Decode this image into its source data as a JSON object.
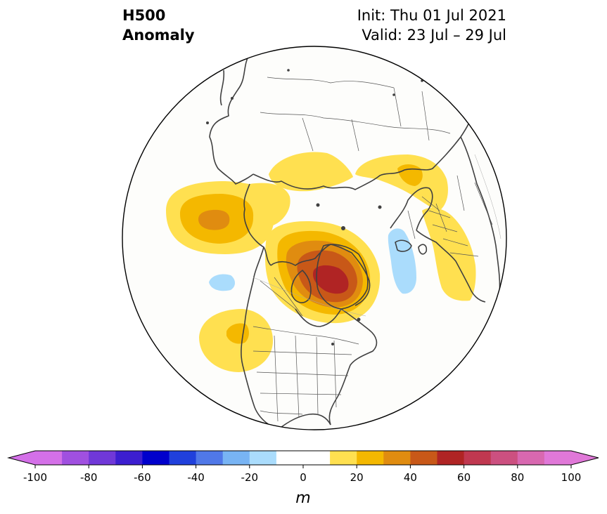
{
  "title": {
    "line1": "H500",
    "line2": "Anomaly",
    "init": "Init: Thu 01 Jul 2021",
    "valid": "Valid: 23 Jul – 29 Jul"
  },
  "colorbar": {
    "unit": "m",
    "ticks": [
      "-100",
      "-80",
      "-60",
      "-40",
      "-20",
      "0",
      "20",
      "40",
      "60",
      "80",
      "100"
    ],
    "levels": [
      -100,
      -90,
      -80,
      -70,
      -60,
      -50,
      -40,
      -30,
      -20,
      -10,
      10,
      20,
      30,
      40,
      50,
      60,
      70,
      80,
      90,
      100
    ],
    "colors": {
      "under": "#d470e8",
      "bins": [
        "#d470e8",
        "#a050e0",
        "#7038d8",
        "#3c1ed0",
        "#0000cc",
        "#2040dc",
        "#5078e8",
        "#78b4f4",
        "#aadcfc",
        "#ffffff",
        "#ffe050",
        "#f4b800",
        "#e08c10",
        "#c85818",
        "#b02424",
        "#c03850",
        "#cc5080",
        "#d868b0",
        "#e078d8"
      ],
      "over": "#e078d8"
    }
  },
  "map": {
    "projection": "north-polar-stereographic",
    "land_color": "#fdfdfb",
    "coast_color": "#404040"
  }
}
